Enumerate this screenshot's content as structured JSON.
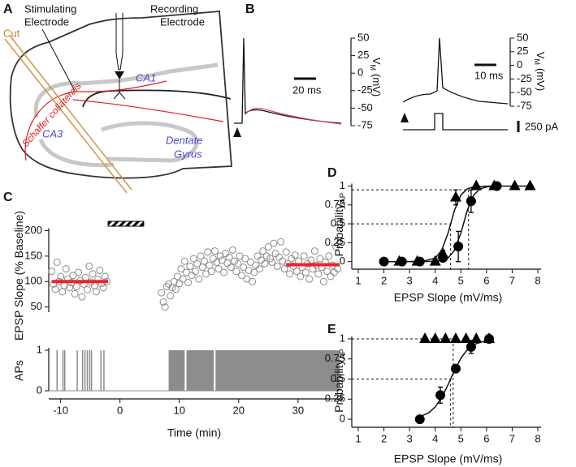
{
  "panel_a": {
    "label": "A",
    "stimulating_electrode": [
      "Stimulating",
      "Electrode"
    ],
    "recording_electrode": [
      "Recording",
      "Electrode"
    ],
    "cut": "Cut",
    "schaffer": "Schaffer collaterals",
    "ca1": "CA1",
    "ca3": "CA3",
    "dentate_gyrus": [
      "Dentate",
      "Gyrus"
    ]
  },
  "panel_b": {
    "label": "B",
    "left": {
      "ylim": [
        -75,
        50
      ],
      "yticks": [
        50,
        25,
        0,
        -25,
        -50,
        -75
      ],
      "ylabel": "V",
      "ylabel_sub": "M",
      "ylabel_unit": "(mV)",
      "scale_bar": "20 ms"
    },
    "right": {
      "ylim": [
        -75,
        50
      ],
      "yticks": [
        50,
        25,
        0,
        -25,
        -50,
        -75
      ],
      "ylabel": "V",
      "ylabel_sub": "M",
      "ylabel_unit": "(mV)",
      "scale_bar": "10 ms",
      "current_scale": "250 pA"
    }
  },
  "chart_data": [
    {
      "type": "scatter",
      "panel_label": "C",
      "ylabel": "EPSP Slope (% Baseline)",
      "color": "#8c8c8c",
      "x": [
        -11.5,
        -11.2,
        -10.9,
        -10.6,
        -10.3,
        -10,
        -9.7,
        -9.4,
        -9.1,
        -8.8,
        -8.5,
        -8.2,
        -7.9,
        -7.6,
        -7.3,
        -7,
        -6.7,
        -6.4,
        -6.1,
        -5.8,
        -5.5,
        -5.2,
        -4.9,
        -4.6,
        -4.3,
        -4,
        -3.7,
        -3.4,
        -3.1,
        -2.8,
        -2.5,
        -2.2,
        7,
        7.3,
        7.6,
        7.9,
        8.2,
        8.5,
        8.8,
        9.1,
        9.4,
        9.7,
        10,
        10.3,
        10.6,
        10.9,
        11.2,
        11.5,
        11.8,
        12.1,
        12.4,
        12.7,
        13,
        13.3,
        13.6,
        13.9,
        14.2,
        14.5,
        14.8,
        15.1,
        15.4,
        15.7,
        16,
        16.3,
        16.6,
        16.9,
        17.2,
        17.5,
        17.8,
        18.1,
        18.4,
        18.7,
        19,
        19.3,
        19.6,
        19.9,
        20.2,
        20.5,
        20.8,
        21.1,
        21.4,
        21.7,
        22,
        22.3,
        22.6,
        22.9,
        23.2,
        23.5,
        23.8,
        24.1,
        24.4,
        24.7,
        25,
        25.3,
        25.6,
        25.9,
        26.2,
        26.5,
        26.8,
        27.1,
        27.4,
        27.7,
        28,
        28.3,
        28.6,
        28.9,
        29.2,
        29.5,
        29.8,
        30.1,
        30.4,
        30.7,
        31,
        31.3,
        31.6,
        31.9,
        32.2,
        32.5,
        32.8,
        33.1,
        33.4,
        33.7,
        34,
        34.3,
        34.6,
        34.9,
        35.2,
        35.5,
        35.8,
        36.1,
        36.4,
        36.7
      ],
      "values": [
        120,
        95,
        85,
        138,
        100,
        110,
        80,
        92,
        125,
        105,
        88,
        98,
        112,
        76,
        90,
        118,
        102,
        70,
        95,
        108,
        84,
        130,
        99,
        115,
        92,
        80,
        104,
        122,
        96,
        88,
        110,
        100,
        78,
        60,
        50,
        90,
        95,
        72,
        88,
        100,
        85,
        110,
        96,
        125,
        105,
        140,
        118,
        98,
        130,
        112,
        145,
        120,
        135,
        105,
        150,
        128,
        140,
        115,
        158,
        132,
        120,
        145,
        160,
        138,
        125,
        150,
        142,
        118,
        155,
        136,
        148,
        128,
        162,
        140,
        120,
        135,
        150,
        112,
        128,
        145,
        105,
        122,
        138,
        100,
        118,
        132,
        150,
        125,
        142,
        160,
        135,
        150,
        168,
        145,
        138,
        175,
        155,
        130,
        148,
        178,
        140,
        125,
        158,
        135,
        115,
        145,
        130,
        152,
        120,
        140,
        110,
        128,
        150,
        118,
        135,
        105,
        142,
        125,
        160,
        132,
        115,
        145,
        128,
        100,
        138,
        120,
        150,
        110,
        132,
        118,
        168,
        125
      ],
      "means": [
        {
          "x": [
            -11.5,
            -2
          ],
          "y": [
            100,
            100
          ]
        },
        {
          "x": [
            28,
            37
          ],
          "y": [
            133,
            133
          ]
        }
      ],
      "mean_color": "#e8262b",
      "pairing": [
        -2,
        4
      ],
      "xlim": [
        -12,
        37
      ],
      "ylim": [
        40,
        215
      ],
      "yticks": [
        50,
        100,
        150,
        200
      ]
    },
    {
      "type": "raster",
      "ylabel": "APs",
      "xlabel": "Time (min)",
      "color": "#8c8c8c",
      "spike_times": [
        -10.6,
        -9.6,
        -9.3,
        -7.2,
        -6.3,
        -5.9,
        -5.5,
        -5.1,
        -4.8,
        -3.2,
        -2.7
      ],
      "dense_ranges": [
        [
          8.2,
          10.9
        ],
        [
          11.2,
          15.8
        ],
        [
          16.1,
          37
        ]
      ],
      "xlim": [
        -12,
        37
      ],
      "ylim": [
        0,
        1
      ],
      "yticks": [
        0,
        1
      ],
      "xticks": [
        -10,
        0,
        10,
        20,
        30
      ]
    },
    {
      "type": "scatter",
      "panel_label": "D",
      "ylabel": "Probability",
      "ylabel_sub": "AP",
      "xlabel": "EPSP Slope (mV/ms)",
      "xlim": [
        1,
        8
      ],
      "ylim": [
        -0.1,
        1.08
      ],
      "xticks": [
        1,
        2,
        3,
        4,
        5,
        6,
        7,
        8
      ],
      "yticks": [
        0,
        0.25,
        0.5,
        0.75,
        1
      ],
      "series": [
        {
          "marker": "triangle",
          "color": "#000000",
          "x": [
            2.6,
            3.3,
            4.0,
            4.3,
            4.8,
            5.6,
            6.3,
            7.1,
            7.7
          ],
          "values": [
            0,
            0,
            0,
            0.1,
            0.85,
            1,
            1,
            1,
            1
          ],
          "errors": [
            0,
            0,
            0,
            0.05,
            0.1,
            0,
            0,
            0,
            0
          ]
        },
        {
          "marker": "circle",
          "color": "#000000",
          "x": [
            2.0,
            2.7,
            3.4,
            4.3,
            4.9,
            5.4,
            6.4
          ],
          "values": [
            0,
            0,
            0,
            0.05,
            0.2,
            0.8,
            1
          ],
          "errors": [
            0,
            0,
            0,
            0.05,
            0.2,
            0.15,
            0
          ]
        }
      ],
      "fits": [
        {
          "x": [
            2,
            3,
            3.5,
            4,
            4.25,
            4.5,
            4.75,
            5,
            5.25,
            5.5,
            6,
            7,
            7.7
          ],
          "y": [
            0,
            0.0003,
            0.004,
            0.047,
            0.148,
            0.377,
            0.679,
            0.881,
            0.963,
            0.989,
            0.999,
            1,
            1
          ]
        },
        {
          "x": [
            2,
            3.5,
            4,
            4.25,
            4.5,
            4.75,
            5,
            5.25,
            5.5,
            5.75,
            6,
            6.5
          ],
          "y": [
            0,
            0.0003,
            0.004,
            0.014,
            0.047,
            0.148,
            0.377,
            0.679,
            0.881,
            0.963,
            0.989,
            0.999
          ]
        }
      ],
      "guides": [
        {
          "x": 5.3,
          "y": 0.95
        },
        {
          "x": 4.6,
          "y": 0.5
        }
      ]
    },
    {
      "type": "scatter",
      "panel_label": "E",
      "ylabel": "Probability",
      "ylabel_sub": "AP",
      "xlabel": "EPSP Slope (mV/ms)",
      "xlim": [
        1,
        8
      ],
      "ylim": [
        -0.1,
        1.06
      ],
      "xticks": [
        1,
        2,
        3,
        4,
        5,
        6,
        7,
        8
      ],
      "yticks": [
        0,
        0.25,
        0.5,
        0.75,
        1
      ],
      "series": [
        {
          "marker": "triangle",
          "color": "#000000",
          "x": [
            3.6,
            4.0,
            4.4,
            4.8,
            5.2,
            5.6,
            6.1
          ],
          "values": [
            1,
            1,
            1,
            1,
            1,
            1,
            1
          ],
          "errors": [
            0,
            0,
            0,
            0,
            0,
            0,
            0
          ]
        },
        {
          "marker": "circle",
          "color": "#000000",
          "x": [
            3.4,
            4.2,
            4.8,
            5.4,
            6.1
          ],
          "values": [
            0,
            0.3,
            0.63,
            0.9,
            1
          ],
          "errors": [
            0,
            0.1,
            0.05,
            0.08,
            0.05
          ]
        }
      ],
      "fits": [
        {
          "x": [
            3.4,
            3.75,
            4,
            4.25,
            4.5,
            4.75,
            5,
            5.25,
            5.5,
            6,
            6.2
          ],
          "y": [
            0.031,
            0.081,
            0.153,
            0.269,
            0.429,
            0.606,
            0.758,
            0.865,
            0.929,
            0.982,
            0.989
          ]
        }
      ],
      "guides": [
        {
          "x": 4.7,
          "y": 1
        },
        {
          "x": 4.6,
          "y": 0.5
        }
      ]
    }
  ]
}
